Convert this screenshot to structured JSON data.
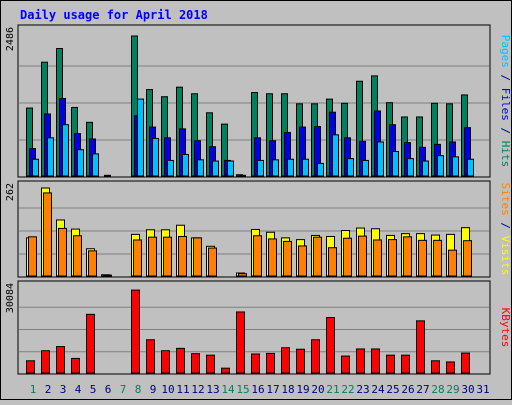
{
  "chart_data": [
    {
      "type": "bar",
      "title": "Daily usage for April 2018",
      "categories": [
        "1",
        "2",
        "3",
        "4",
        "5",
        "6",
        "7",
        "8",
        "9",
        "10",
        "11",
        "12",
        "13",
        "14",
        "15",
        "16",
        "17",
        "18",
        "19",
        "20",
        "21",
        "22",
        "23",
        "24",
        "25",
        "26",
        "27",
        "28",
        "29",
        "30",
        "31"
      ],
      "weekend_days": [
        "1",
        "7",
        "8",
        "14",
        "15",
        "21",
        "22",
        "28",
        "29"
      ],
      "ymax_label": "2486",
      "ylim": [
        0,
        2486
      ],
      "grid": true,
      "right_label": [
        "Pages",
        "Files",
        "Hits"
      ],
      "right_label_sep": " / ",
      "series": [
        {
          "name": "Hits",
          "color": "#00805c",
          "values": [
            1150,
            1920,
            2150,
            1160,
            910,
            0,
            0,
            2360,
            1460,
            1340,
            1500,
            1390,
            1070,
            880,
            30,
            1410,
            1390,
            1390,
            1220,
            1220,
            1300,
            1230,
            1600,
            1690,
            1240,
            1000,
            1000,
            1230,
            1220,
            1370,
            0
          ]
        },
        {
          "name": "Files",
          "color": "#0000e0",
          "values": [
            470,
            1050,
            1310,
            720,
            630,
            20,
            0,
            1020,
            830,
            650,
            800,
            600,
            500,
            270,
            20,
            650,
            600,
            740,
            830,
            840,
            1080,
            650,
            590,
            1100,
            870,
            570,
            490,
            540,
            580,
            820,
            0
          ]
        },
        {
          "name": "Pages",
          "color": "#00c0ff",
          "values": [
            290,
            650,
            870,
            450,
            380,
            0,
            0,
            1300,
            640,
            270,
            370,
            280,
            260,
            260,
            0,
            270,
            280,
            290,
            290,
            220,
            700,
            300,
            270,
            580,
            420,
            300,
            260,
            350,
            330,
            290,
            0
          ]
        }
      ]
    },
    {
      "type": "bar",
      "ymax_label": "262",
      "ylim": [
        0,
        262
      ],
      "grid": true,
      "right_label": [
        "Sites",
        "Visits"
      ],
      "right_label_sep": " / ",
      "series": [
        {
          "name": "Visits",
          "color": "#ffff00",
          "values": [
            110,
            252,
            161,
            135,
            79,
            5,
            0,
            120,
            133,
            133,
            146,
            110,
            86,
            0,
            10,
            134,
            126,
            110,
            105,
            117,
            114,
            131,
            138,
            136,
            117,
            122,
            122,
            118,
            120,
            139,
            0
          ]
        },
        {
          "name": "Sites",
          "color": "#ff8000",
          "values": [
            113,
            238,
            137,
            116,
            73,
            4,
            0,
            104,
            112,
            112,
            114,
            110,
            81,
            0,
            8,
            116,
            107,
            100,
            87,
            112,
            82,
            109,
            115,
            104,
            105,
            113,
            103,
            103,
            75,
            102,
            0
          ]
        }
      ]
    },
    {
      "type": "bar",
      "ymax_label": "30084",
      "ylim": [
        0,
        30084
      ],
      "grid": true,
      "right_label": [
        "KBytes"
      ],
      "right_label_sep": "",
      "series": [
        {
          "name": "KBytes",
          "color": "#ff0000",
          "values": [
            4300,
            7700,
            9100,
            5100,
            20000,
            0,
            0,
            28200,
            11400,
            7700,
            8500,
            6700,
            6200,
            1800,
            20800,
            6600,
            6800,
            8700,
            8200,
            11400,
            18900,
            5900,
            8300,
            8300,
            6200,
            6200,
            17800,
            4300,
            3900,
            6900,
            0
          ]
        }
      ]
    }
  ]
}
